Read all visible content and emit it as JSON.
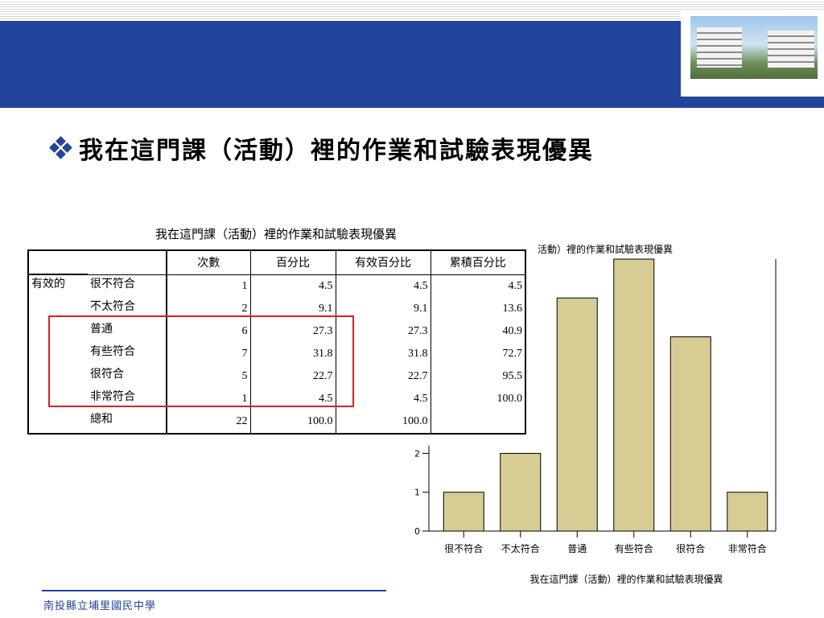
{
  "slide": {
    "title": "我在這門課（活動）裡的作業和試驗表現優異",
    "footer": "南投縣立埔里國民中學"
  },
  "table": {
    "caption": "我在這門課（活動）裡的作業和試驗表現優異",
    "headers": [
      "次數",
      "百分比",
      "有效百分比",
      "累積百分比"
    ],
    "group_label": "有效的",
    "rows": [
      {
        "label": "很不符合",
        "count": "1",
        "percent": "4.5",
        "valid_percent": "4.5",
        "cumulative": "4.5"
      },
      {
        "label": "不太符合",
        "count": "2",
        "percent": "9.1",
        "valid_percent": "9.1",
        "cumulative": "13.6"
      },
      {
        "label": "普通",
        "count": "6",
        "percent": "27.3",
        "valid_percent": "27.3",
        "cumulative": "40.9"
      },
      {
        "label": "有些符合",
        "count": "7",
        "percent": "31.8",
        "valid_percent": "31.8",
        "cumulative": "72.7"
      },
      {
        "label": "很符合",
        "count": "5",
        "percent": "22.7",
        "valid_percent": "22.7",
        "cumulative": "95.5"
      },
      {
        "label": "非常符合",
        "count": "1",
        "percent": "4.5",
        "valid_percent": "4.5",
        "cumulative": "100.0"
      }
    ],
    "total": {
      "label": "總和",
      "count": "22",
      "percent": "100.0",
      "valid_percent": "100.0",
      "cumulative": ""
    }
  },
  "chart_data": {
    "type": "bar",
    "title": "活動）裡的作業和試驗表現優異",
    "xlabel": "我在這門課（活動）裡的作業和試驗表現優異",
    "ylabel": "",
    "categories": [
      "很不符合",
      "不太符合",
      "普通",
      "有些符合",
      "很符合",
      "非常符合"
    ],
    "values": [
      1,
      2,
      6,
      7,
      5,
      1
    ],
    "y_ticks": [
      "0",
      "1",
      "2"
    ],
    "ylim": [
      0,
      7
    ],
    "bar_color": "#d6cc94",
    "bar_stroke": "#000000",
    "grid": false
  },
  "colors": {
    "banner": "#22449a",
    "highlight": "#e02020"
  },
  "icons": {
    "bullet": "diamond-bullet-icon"
  }
}
